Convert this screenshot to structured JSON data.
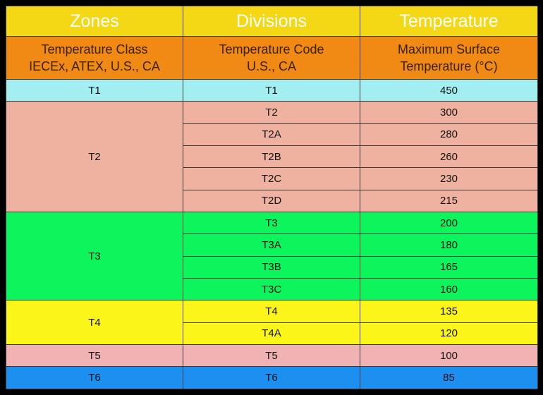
{
  "header": {
    "zones": "Zones",
    "divisions": "Divisions",
    "temperature": "Temperature"
  },
  "subheader": {
    "zones_line1": "Temperature Class",
    "zones_line2": "IECEx, ATEX, U.S., CA",
    "divisions_line1": "Temperature Code",
    "divisions_line2": "U.S., CA",
    "temperature_line1": "Maximum Surface",
    "temperature_line2": "Temperature (°C)"
  },
  "groups": [
    {
      "zone": "T1",
      "color": "#a2eef0",
      "rows": [
        {
          "code": "T1",
          "temp": "450"
        }
      ]
    },
    {
      "zone": "T2",
      "color": "#f0b2a0",
      "rows": [
        {
          "code": "T2",
          "temp": "300"
        },
        {
          "code": "T2A",
          "temp": "280"
        },
        {
          "code": "T2B",
          "temp": "260"
        },
        {
          "code": "T2C",
          "temp": "230"
        },
        {
          "code": "T2D",
          "temp": "215"
        }
      ]
    },
    {
      "zone": "T3",
      "color": "#0df55c",
      "rows": [
        {
          "code": "T3",
          "temp": "200"
        },
        {
          "code": "T3A",
          "temp": "180"
        },
        {
          "code": "T3B",
          "temp": "165"
        },
        {
          "code": "T3C",
          "temp": "160"
        }
      ]
    },
    {
      "zone": "T4",
      "color": "#fbf51a",
      "rows": [
        {
          "code": "T4",
          "temp": "135"
        },
        {
          "code": "T4A",
          "temp": "120"
        }
      ]
    },
    {
      "zone": "T5",
      "color": "#f0b2b2",
      "rows": [
        {
          "code": "T5",
          "temp": "100"
        }
      ]
    },
    {
      "zone": "T6",
      "color": "#1d8ff0",
      "rows": [
        {
          "code": "T6",
          "temp": "85"
        }
      ]
    }
  ]
}
